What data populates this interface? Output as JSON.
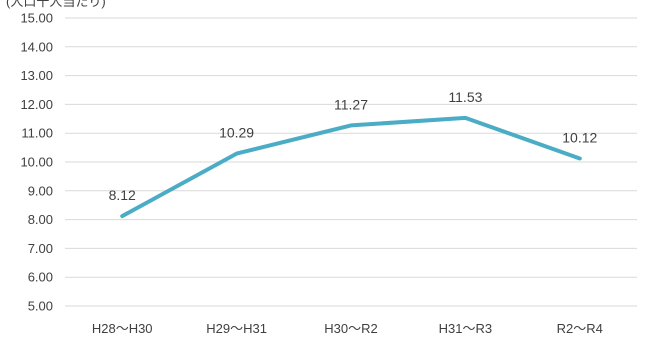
{
  "chart_data": {
    "type": "line",
    "unit_label": "(人口千人当たり)",
    "categories": [
      "H28～H30",
      "H29～H31",
      "H30～R2",
      "H31～R3",
      "R2～R4"
    ],
    "series": [
      {
        "values": [
          8.12,
          10.29,
          11.27,
          11.53,
          10.12
        ],
        "color": "#4bacc6"
      }
    ],
    "data_labels": [
      "8.12",
      "10.29",
      "11.27",
      "11.53",
      "10.12"
    ],
    "ylim": [
      5.0,
      15.0
    ],
    "yticks": [
      "5.00",
      "6.00",
      "7.00",
      "8.00",
      "9.00",
      "10.00",
      "11.00",
      "12.00",
      "13.00",
      "14.00",
      "15.00"
    ],
    "grid": true,
    "legend": "none"
  }
}
